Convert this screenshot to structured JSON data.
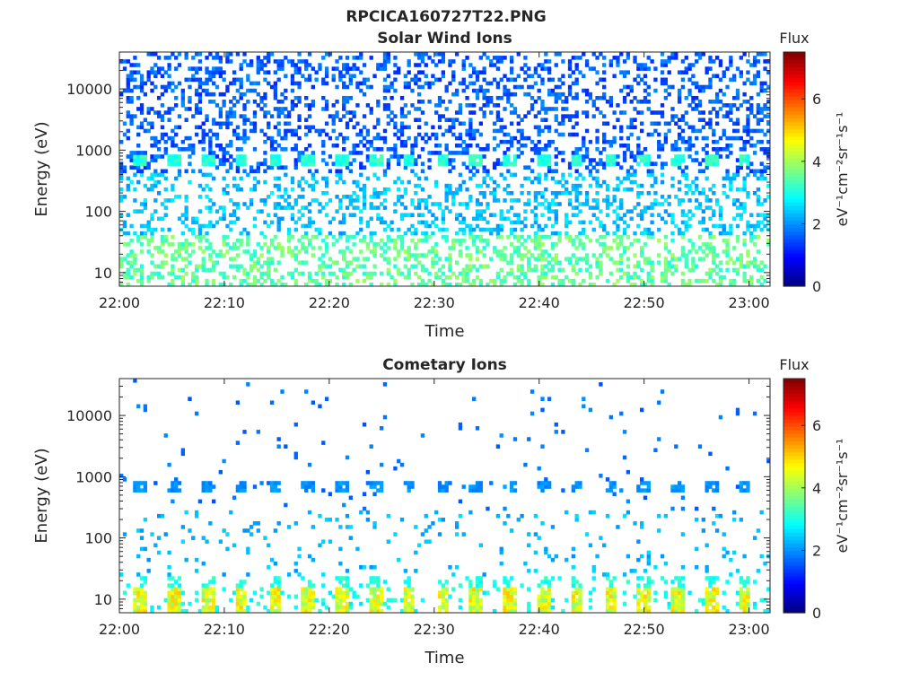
{
  "figure": {
    "title": "RPCICA160727T22.PNG"
  },
  "chart_data": [
    {
      "type": "heatmap",
      "title": "Solar Wind Ions",
      "xlabel": "Time",
      "ylabel": "Energy (eV)",
      "x_ticks": [
        "22:00",
        "22:10",
        "22:20",
        "22:30",
        "22:40",
        "22:50",
        "23:00"
      ],
      "y_ticks": [
        "10",
        "100",
        "1000",
        "10000"
      ],
      "y_scale": "log",
      "colorbar": {
        "title": "Flux",
        "label": "eV⁻¹cm⁻²sr⁻¹s⁻¹",
        "ticks": [
          "0",
          "2",
          "4",
          "6"
        ],
        "range": [
          0,
          7.5
        ],
        "colormap": "jet"
      },
      "features": [
        {
          "energy_range_eV": [
            6,
            40
          ],
          "typical_flux": 3.3
        },
        {
          "energy_range_eV": [
            40,
            400
          ],
          "typical_flux": 2.3
        },
        {
          "energy_range_eV": [
            400,
            40000
          ],
          "typical_flux": 1.5
        },
        {
          "energy_eV": 700,
          "typical_flux": 3.0
        }
      ]
    },
    {
      "type": "heatmap",
      "title": "Cometary Ions",
      "xlabel": "Time",
      "ylabel": "Energy (eV)",
      "x_ticks": [
        "22:00",
        "22:10",
        "22:20",
        "22:30",
        "22:40",
        "22:50",
        "23:00"
      ],
      "y_ticks": [
        "10",
        "100",
        "1000",
        "10000"
      ],
      "y_scale": "log",
      "colorbar": {
        "title": "Flux",
        "label": "eV⁻¹cm⁻²sr⁻¹s⁻¹",
        "ticks": [
          "0",
          "2",
          "4",
          "6"
        ],
        "range": [
          0,
          7.5
        ],
        "colormap": "jet"
      },
      "features": [
        {
          "energy_range_eV": [
            6,
            15
          ],
          "typical_flux": 4.2
        },
        {
          "energy_range_eV": [
            15,
            25
          ],
          "typical_flux": 3.0
        },
        {
          "energy_range_eV": [
            40,
            300
          ],
          "typical_flux": 2.3
        },
        {
          "energy_eV": 700,
          "typical_flux": 2.0
        }
      ]
    }
  ]
}
